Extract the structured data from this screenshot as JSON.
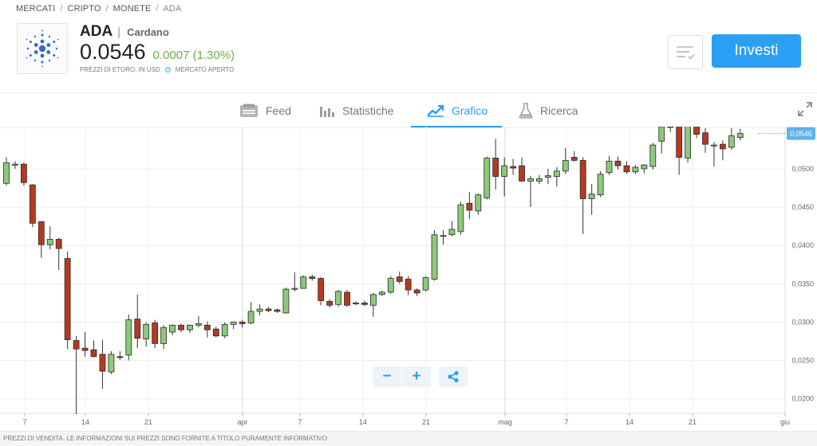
{
  "breadcrumb": {
    "items": [
      "MERCATI",
      "CRIPTO",
      "MONETE"
    ],
    "current": "ADA",
    "separator": "/"
  },
  "asset": {
    "ticker": "ADA",
    "separator": "|",
    "name": "Cardano",
    "price": "0.0546",
    "change": "0.0007 (1.30%)",
    "price_source": "PREZZI DI ETORO, IN USD",
    "market_status": "MERCATO APERTO"
  },
  "actions": {
    "invest_label": "Investi",
    "watchlist_icon": "watchlist-icon"
  },
  "tabs": [
    {
      "label": "Feed",
      "icon": "feed-icon",
      "active": false
    },
    {
      "label": "Statistiche",
      "icon": "stats-icon",
      "active": false
    },
    {
      "label": "Grafico",
      "icon": "chart-icon",
      "active": true
    },
    {
      "label": "Ricerca",
      "icon": "flask-icon",
      "active": false
    }
  ],
  "chart_controls": {
    "zoom_out": "−",
    "zoom_in": "+",
    "share_icon": "share-icon",
    "expand_icon": "expand-icon"
  },
  "footer": {
    "disclaimer": "PREZZI DI VENDITA. LE INFORMAZIONI SUI PREZZI SONO FORNITE A TITOLO PURAMENTE INFORMATIVO"
  },
  "colors": {
    "accent": "#2a9ff3",
    "up_change": "#6cb043",
    "candle_up": "#8cc97a",
    "candle_down": "#b53a1f",
    "price_tag": "#63b2e8"
  },
  "chart_data": {
    "type": "candlestick",
    "x_tick_labels": [
      "7",
      "14",
      "21",
      "apr",
      "7",
      "14",
      "21",
      "mag",
      "7",
      "14",
      "21",
      "giu"
    ],
    "y_tick_labels": [
      "0,0200",
      "0,0250",
      "0,0300",
      "0,0350",
      "0,0400",
      "0,0450",
      "0,0500"
    ],
    "y_ticks": [
      0.02,
      0.025,
      0.03,
      0.035,
      0.04,
      0.045,
      0.05
    ],
    "ylim": [
      0.0181,
      0.0555
    ],
    "last_price_label": "0,0546",
    "last_price": 0.0546,
    "grid": true,
    "candles": [
      {
        "o": 0.0481,
        "h": 0.0515,
        "l": 0.0478,
        "c": 0.0508
      },
      {
        "o": 0.0505,
        "h": 0.051,
        "l": 0.05,
        "c": 0.0506
      },
      {
        "o": 0.0506,
        "h": 0.0508,
        "l": 0.0478,
        "c": 0.0482
      },
      {
        "o": 0.0479,
        "h": 0.048,
        "l": 0.0424,
        "c": 0.0429
      },
      {
        "o": 0.0431,
        "h": 0.0432,
        "l": 0.0384,
        "c": 0.0401
      },
      {
        "o": 0.0401,
        "h": 0.0425,
        "l": 0.0395,
        "c": 0.0408
      },
      {
        "o": 0.0408,
        "h": 0.041,
        "l": 0.0368,
        "c": 0.0396
      },
      {
        "o": 0.0383,
        "h": 0.0392,
        "l": 0.0265,
        "c": 0.0277
      },
      {
        "o": 0.0276,
        "h": 0.0282,
        "l": 0.018,
        "c": 0.0265
      },
      {
        "o": 0.0266,
        "h": 0.0287,
        "l": 0.0255,
        "c": 0.0263
      },
      {
        "o": 0.0264,
        "h": 0.0276,
        "l": 0.0254,
        "c": 0.0255
      },
      {
        "o": 0.0258,
        "h": 0.0277,
        "l": 0.0213,
        "c": 0.0236
      },
      {
        "o": 0.0235,
        "h": 0.0262,
        "l": 0.0232,
        "c": 0.0258
      },
      {
        "o": 0.0255,
        "h": 0.0262,
        "l": 0.0251,
        "c": 0.0254
      },
      {
        "o": 0.0257,
        "h": 0.031,
        "l": 0.025,
        "c": 0.0303
      },
      {
        "o": 0.0304,
        "h": 0.0336,
        "l": 0.0266,
        "c": 0.0279
      },
      {
        "o": 0.0278,
        "h": 0.03,
        "l": 0.0268,
        "c": 0.0297
      },
      {
        "o": 0.0299,
        "h": 0.0303,
        "l": 0.0266,
        "c": 0.0272
      },
      {
        "o": 0.0272,
        "h": 0.0296,
        "l": 0.0265,
        "c": 0.0293
      },
      {
        "o": 0.0287,
        "h": 0.0297,
        "l": 0.0283,
        "c": 0.0296
      },
      {
        "o": 0.0296,
        "h": 0.0298,
        "l": 0.0287,
        "c": 0.029
      },
      {
        "o": 0.029,
        "h": 0.0297,
        "l": 0.0286,
        "c": 0.0296
      },
      {
        "o": 0.0296,
        "h": 0.0308,
        "l": 0.0293,
        "c": 0.0298
      },
      {
        "o": 0.0296,
        "h": 0.0301,
        "l": 0.028,
        "c": 0.029
      },
      {
        "o": 0.0291,
        "h": 0.0294,
        "l": 0.028,
        "c": 0.0282
      },
      {
        "o": 0.0282,
        "h": 0.03,
        "l": 0.0279,
        "c": 0.0297
      },
      {
        "o": 0.0297,
        "h": 0.0301,
        "l": 0.0291,
        "c": 0.03
      },
      {
        "o": 0.03,
        "h": 0.0303,
        "l": 0.0293,
        "c": 0.0298
      },
      {
        "o": 0.0299,
        "h": 0.0326,
        "l": 0.0297,
        "c": 0.0314
      },
      {
        "o": 0.0314,
        "h": 0.0323,
        "l": 0.0309,
        "c": 0.0317
      },
      {
        "o": 0.0317,
        "h": 0.032,
        "l": 0.0313,
        "c": 0.0315
      },
      {
        "o": 0.0316,
        "h": 0.0318,
        "l": 0.0312,
        "c": 0.0314
      },
      {
        "o": 0.0312,
        "h": 0.0345,
        "l": 0.0311,
        "c": 0.0343
      },
      {
        "o": 0.0343,
        "h": 0.0365,
        "l": 0.034,
        "c": 0.0344
      },
      {
        "o": 0.0344,
        "h": 0.0361,
        "l": 0.0344,
        "c": 0.0359
      },
      {
        "o": 0.0359,
        "h": 0.0362,
        "l": 0.0354,
        "c": 0.0357
      },
      {
        "o": 0.0357,
        "h": 0.0359,
        "l": 0.0322,
        "c": 0.0328
      },
      {
        "o": 0.0327,
        "h": 0.033,
        "l": 0.0319,
        "c": 0.0322
      },
      {
        "o": 0.0323,
        "h": 0.0342,
        "l": 0.032,
        "c": 0.034
      },
      {
        "o": 0.0339,
        "h": 0.0342,
        "l": 0.032,
        "c": 0.0322
      },
      {
        "o": 0.0324,
        "h": 0.0327,
        "l": 0.0322,
        "c": 0.0325
      },
      {
        "o": 0.0325,
        "h": 0.0328,
        "l": 0.0321,
        "c": 0.0323
      },
      {
        "o": 0.0322,
        "h": 0.0338,
        "l": 0.0307,
        "c": 0.0336
      },
      {
        "o": 0.0336,
        "h": 0.0341,
        "l": 0.0334,
        "c": 0.0339
      },
      {
        "o": 0.0339,
        "h": 0.036,
        "l": 0.0337,
        "c": 0.0357
      },
      {
        "o": 0.0359,
        "h": 0.0366,
        "l": 0.035,
        "c": 0.0353
      },
      {
        "o": 0.0356,
        "h": 0.036,
        "l": 0.0335,
        "c": 0.0342
      },
      {
        "o": 0.0342,
        "h": 0.0344,
        "l": 0.0334,
        "c": 0.0338
      },
      {
        "o": 0.0342,
        "h": 0.036,
        "l": 0.034,
        "c": 0.0358
      },
      {
        "o": 0.0356,
        "h": 0.042,
        "l": 0.0354,
        "c": 0.0414
      },
      {
        "o": 0.0412,
        "h": 0.042,
        "l": 0.0401,
        "c": 0.0413
      },
      {
        "o": 0.0414,
        "h": 0.0432,
        "l": 0.0412,
        "c": 0.0421
      },
      {
        "o": 0.0418,
        "h": 0.0457,
        "l": 0.0414,
        "c": 0.0453
      },
      {
        "o": 0.0455,
        "h": 0.047,
        "l": 0.0434,
        "c": 0.0446
      },
      {
        "o": 0.0445,
        "h": 0.0468,
        "l": 0.044,
        "c": 0.0466
      },
      {
        "o": 0.0462,
        "h": 0.0516,
        "l": 0.046,
        "c": 0.0514
      },
      {
        "o": 0.0514,
        "h": 0.0539,
        "l": 0.0473,
        "c": 0.049
      },
      {
        "o": 0.049,
        "h": 0.0515,
        "l": 0.0464,
        "c": 0.0504
      },
      {
        "o": 0.0503,
        "h": 0.0513,
        "l": 0.0492,
        "c": 0.0501
      },
      {
        "o": 0.0504,
        "h": 0.0515,
        "l": 0.0483,
        "c": 0.0484
      },
      {
        "o": 0.0484,
        "h": 0.0491,
        "l": 0.045,
        "c": 0.0487
      },
      {
        "o": 0.0484,
        "h": 0.0492,
        "l": 0.048,
        "c": 0.0487
      },
      {
        "o": 0.0489,
        "h": 0.05,
        "l": 0.048,
        "c": 0.0491
      },
      {
        "o": 0.049,
        "h": 0.0502,
        "l": 0.0477,
        "c": 0.0497
      },
      {
        "o": 0.0497,
        "h": 0.0527,
        "l": 0.0493,
        "c": 0.0511
      },
      {
        "o": 0.0515,
        "h": 0.0523,
        "l": 0.0509,
        "c": 0.0511
      },
      {
        "o": 0.0511,
        "h": 0.0515,
        "l": 0.0415,
        "c": 0.0461
      },
      {
        "o": 0.0461,
        "h": 0.048,
        "l": 0.044,
        "c": 0.0467
      },
      {
        "o": 0.0466,
        "h": 0.0497,
        "l": 0.0463,
        "c": 0.0493
      },
      {
        "o": 0.0495,
        "h": 0.0517,
        "l": 0.0492,
        "c": 0.051
      },
      {
        "o": 0.051,
        "h": 0.0516,
        "l": 0.0499,
        "c": 0.0504
      },
      {
        "o": 0.0504,
        "h": 0.051,
        "l": 0.0493,
        "c": 0.0496
      },
      {
        "o": 0.0496,
        "h": 0.0505,
        "l": 0.0493,
        "c": 0.0502
      },
      {
        "o": 0.05,
        "h": 0.0506,
        "l": 0.0494,
        "c": 0.0505
      },
      {
        "o": 0.0503,
        "h": 0.0534,
        "l": 0.0499,
        "c": 0.0531
      },
      {
        "o": 0.0536,
        "h": 0.0558,
        "l": 0.052,
        "c": 0.0555
      },
      {
        "o": 0.0556,
        "h": 0.0558,
        "l": 0.0548,
        "c": 0.0554
      },
      {
        "o": 0.0557,
        "h": 0.0561,
        "l": 0.0492,
        "c": 0.0515
      },
      {
        "o": 0.0514,
        "h": 0.056,
        "l": 0.0508,
        "c": 0.0557
      },
      {
        "o": 0.0558,
        "h": 0.0558,
        "l": 0.054,
        "c": 0.0545
      },
      {
        "o": 0.0547,
        "h": 0.0553,
        "l": 0.0521,
        "c": 0.0532
      },
      {
        "o": 0.0531,
        "h": 0.0535,
        "l": 0.0503,
        "c": 0.0531
      },
      {
        "o": 0.0532,
        "h": 0.0537,
        "l": 0.0511,
        "c": 0.0526
      },
      {
        "o": 0.0528,
        "h": 0.0553,
        "l": 0.0525,
        "c": 0.0543
      },
      {
        "o": 0.0541,
        "h": 0.0552,
        "l": 0.0537,
        "c": 0.0546
      }
    ]
  }
}
